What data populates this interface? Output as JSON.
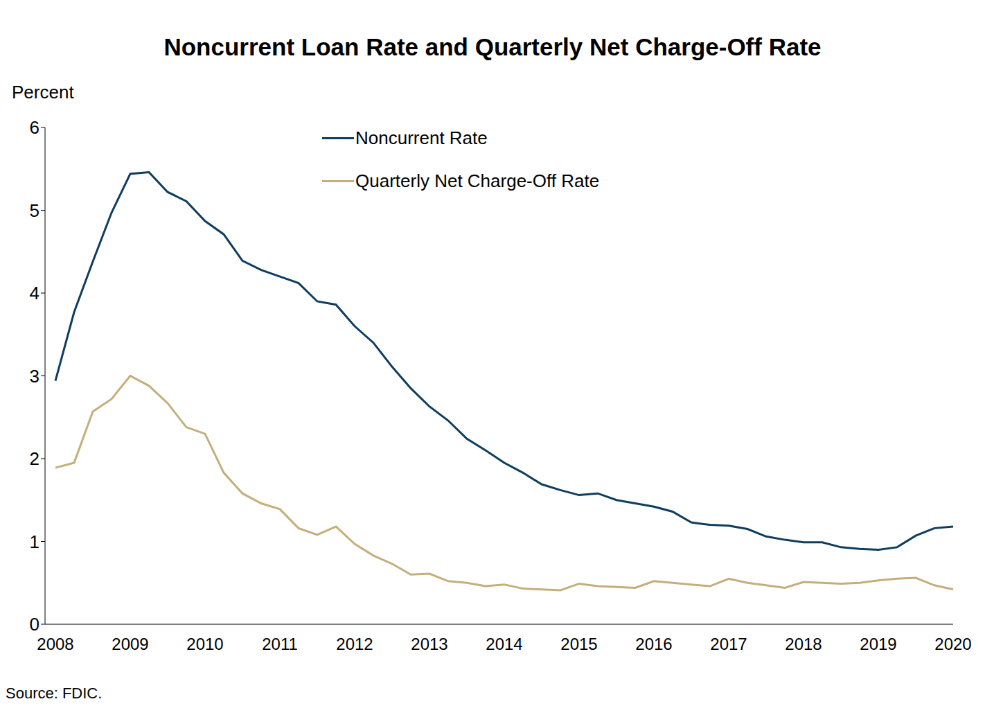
{
  "chart_data": {
    "type": "line",
    "title": "Noncurrent Loan Rate and Quarterly Net Charge-Off Rate",
    "y_label": "Percent",
    "source": "Source: FDIC.",
    "categories": [
      "2008",
      null,
      null,
      null,
      "2009",
      null,
      null,
      null,
      "2010",
      null,
      null,
      null,
      "2011",
      null,
      null,
      null,
      "2012",
      null,
      null,
      null,
      "2013",
      null,
      null,
      null,
      "2014",
      null,
      null,
      null,
      "2015",
      null,
      null,
      null,
      "2016",
      null,
      null,
      null,
      "2017",
      null,
      null,
      null,
      "2018",
      null,
      null,
      null,
      "2019",
      null,
      null,
      null,
      "2020"
    ],
    "series": [
      {
        "name": "Noncurrent Rate",
        "color": "#0f3d5e",
        "values": [
          2.94,
          3.77,
          4.38,
          4.97,
          5.44,
          5.46,
          5.22,
          5.11,
          4.87,
          4.71,
          4.39,
          4.28,
          4.2,
          4.12,
          3.9,
          3.86,
          3.6,
          3.4,
          3.11,
          2.85,
          2.63,
          2.46,
          2.24,
          2.1,
          1.95,
          1.83,
          1.69,
          1.62,
          1.56,
          1.58,
          1.5,
          1.46,
          1.42,
          1.36,
          1.23,
          1.2,
          1.19,
          1.15,
          1.06,
          1.02,
          0.99,
          0.99,
          0.93,
          0.91,
          0.9,
          0.93,
          1.07,
          1.16,
          1.18
        ]
      },
      {
        "name": "Quarterly Net Charge-Off Rate",
        "color": "#c4ae7c",
        "values": [
          1.89,
          1.95,
          2.57,
          2.72,
          3.0,
          2.88,
          2.67,
          2.38,
          2.3,
          1.83,
          1.58,
          1.46,
          1.39,
          1.16,
          1.08,
          1.18,
          0.97,
          0.83,
          0.73,
          0.6,
          0.61,
          0.52,
          0.5,
          0.46,
          0.48,
          0.43,
          0.42,
          0.41,
          0.49,
          0.46,
          0.45,
          0.44,
          0.52,
          0.5,
          0.48,
          0.46,
          0.55,
          0.5,
          0.47,
          0.44,
          0.51,
          0.5,
          0.49,
          0.5,
          0.53,
          0.55,
          0.56,
          0.47,
          0.42
        ]
      }
    ],
    "ylim": [
      0,
      6
    ],
    "yticks": [
      0,
      1,
      2,
      3,
      4,
      5,
      6
    ],
    "grid": false,
    "legend": "top"
  }
}
